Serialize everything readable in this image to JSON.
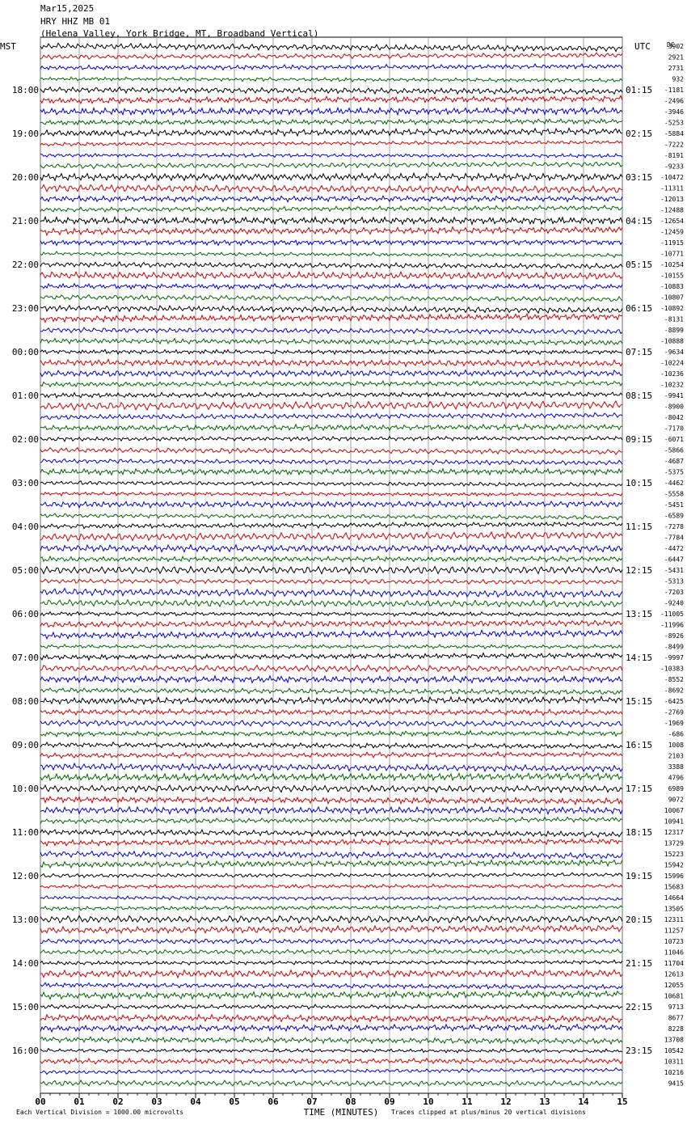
{
  "header": {
    "date": "Mar15,2025",
    "station": "HRY HHZ MB 01",
    "location": "(Helena Valley, York Bridge, MT, Broadband Vertical)"
  },
  "chart_data": {
    "type": "line",
    "title": "HRY HHZ MB 01",
    "left_zone": "MST",
    "right_zone": "UTC",
    "right_unit": "DC",
    "xlabel": "TIME (MINUTES)",
    "x_ticks": [
      "00",
      "01",
      "02",
      "03",
      "04",
      "05",
      "06",
      "07",
      "08",
      "09",
      "10",
      "11",
      "12",
      "13",
      "14",
      "15"
    ],
    "xlim": [
      0,
      15
    ],
    "trace_colors": [
      "#000000",
      "#cc0000",
      "#0000cc",
      "#006600"
    ],
    "left_hours": [
      "18:00",
      "19:00",
      "20:00",
      "21:00",
      "22:00",
      "23:00",
      "00:00",
      "01:00",
      "02:00",
      "03:00",
      "04:00",
      "05:00",
      "06:00",
      "07:00",
      "08:00",
      "09:00",
      "10:00",
      "11:00",
      "12:00",
      "13:00",
      "14:00",
      "15:00",
      "16:00"
    ],
    "right_hours": [
      "01:15",
      "02:15",
      "03:15",
      "04:15",
      "05:15",
      "06:15",
      "07:15",
      "08:15",
      "09:15",
      "10:15",
      "11:15",
      "12:15",
      "13:15",
      "14:15",
      "15:15",
      "16:15",
      "17:15",
      "18:15",
      "19:15",
      "20:15",
      "21:15",
      "22:15",
      "23:15"
    ],
    "trace_offsets": [
      3902,
      2921,
      2731,
      932,
      -1181,
      -2496,
      -3946,
      -5253,
      -5884,
      -7222,
      -8191,
      -9233,
      -10472,
      -11311,
      -12013,
      -12488,
      -12654,
      -12459,
      -11915,
      -10771,
      -10254,
      -10155,
      -10883,
      -10807,
      -10892,
      -8131,
      -8899,
      -10888,
      -9634,
      -10224,
      -10236,
      -10232,
      -9941,
      -8900,
      -8042,
      -7170,
      -6071,
      -5866,
      -4687,
      -5375,
      -4462,
      -5558,
      -5451,
      -6589,
      -7278,
      -7784,
      -4472,
      -6447,
      -5431,
      -5313,
      -7203,
      -9240,
      -11005,
      -11996,
      -8926,
      -8499,
      -9997,
      -10383,
      -8552,
      -8692,
      -6425,
      -2769,
      -1969,
      -686,
      1008,
      2103,
      3388,
      4796,
      6989,
      9072,
      10067,
      10941,
      12317,
      13729,
      15223,
      15942,
      15996,
      15683,
      14664,
      13505,
      12311,
      11257,
      10723,
      11046,
      11704,
      12613,
      12055,
      10681,
      9713,
      8677,
      8228,
      13708,
      10542,
      10311,
      10216,
      9415
    ],
    "footer_left": "Each Vertical Division = 1000.00 microvolts",
    "footer_right": "Traces clipped at plus/minus 20 vertical divisions"
  }
}
